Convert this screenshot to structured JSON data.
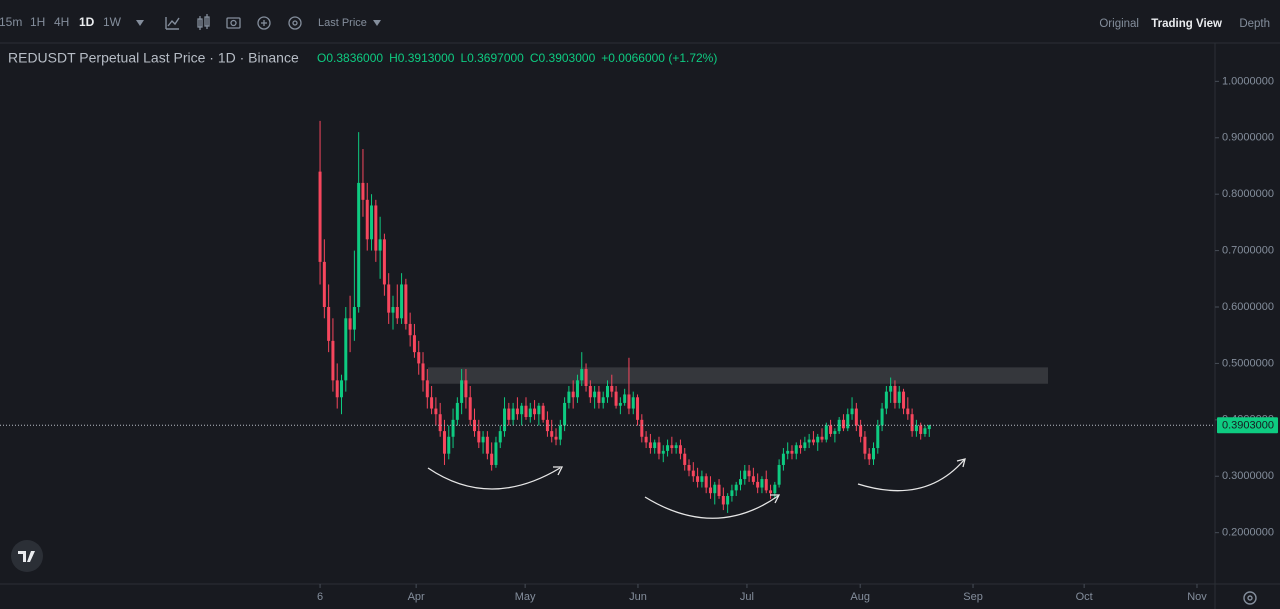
{
  "toolbar": {
    "intervals": [
      "15m",
      "1H",
      "4H",
      "1D",
      "1W"
    ],
    "price_mode": "Last Price",
    "views": [
      "Original",
      "Trading View",
      "Depth"
    ]
  },
  "chart_data": {
    "type": "candlestick",
    "title": "REDUSDT Perpetual Last Price · 1D · Binance",
    "ohlc_legend": [
      "O0.3836000",
      "H0.3913000",
      "L0.3697000",
      "C0.3903000",
      "+0.0066000 (+1.72%)"
    ],
    "up_color": "#0ecb81",
    "down_color": "#f6465d",
    "xticks": [
      {
        "value": 0,
        "label": "6"
      },
      {
        "value": 22.4,
        "label": "Apr"
      },
      {
        "value": 47.8,
        "label": "May"
      },
      {
        "value": 74.1,
        "label": "Jun"
      },
      {
        "value": 99.5,
        "label": "Jul"
      },
      {
        "value": 125.9,
        "label": "Aug"
      },
      {
        "value": 152.2,
        "label": "Sep"
      },
      {
        "value": 178.1,
        "label": "Oct"
      },
      {
        "value": 204.4,
        "label": "Nov"
      }
    ],
    "xlim": [
      -74.6,
      208.6
    ],
    "ylim": [
      0.109,
      1.068
    ],
    "yticks": [
      {
        "value": 0.2,
        "label": "0.2000000"
      },
      {
        "value": 0.3,
        "label": "0.3000000"
      },
      {
        "value": 0.4,
        "label": "0.4000000"
      },
      {
        "value": 0.5,
        "label": "0.5000000"
      },
      {
        "value": 0.6,
        "label": "0.6000000"
      },
      {
        "value": 0.7,
        "label": "0.7000000"
      },
      {
        "value": 0.8,
        "label": "0.8000000"
      },
      {
        "value": 0.9,
        "label": "0.9000000"
      },
      {
        "value": 1.0,
        "label": "1.0000000"
      }
    ],
    "zone": [
      0.464,
      0.493
    ],
    "last_price": {
      "value": 0.3903,
      "label": "0.3903000"
    },
    "ohlc": [
      [
        0.84,
        0.93,
        0.64,
        0.68
      ],
      [
        0.68,
        0.72,
        0.58,
        0.6
      ],
      [
        0.6,
        0.64,
        0.52,
        0.54
      ],
      [
        0.54,
        0.58,
        0.45,
        0.47
      ],
      [
        0.47,
        0.5,
        0.42,
        0.44
      ],
      [
        0.44,
        0.48,
        0.41,
        0.47
      ],
      [
        0.47,
        0.6,
        0.45,
        0.58
      ],
      [
        0.58,
        0.62,
        0.52,
        0.56
      ],
      [
        0.56,
        0.7,
        0.54,
        0.6
      ],
      [
        0.6,
        0.91,
        0.59,
        0.82
      ],
      [
        0.82,
        0.88,
        0.76,
        0.79
      ],
      [
        0.79,
        0.82,
        0.7,
        0.72
      ],
      [
        0.72,
        0.8,
        0.7,
        0.78
      ],
      [
        0.78,
        0.79,
        0.68,
        0.7
      ],
      [
        0.7,
        0.76,
        0.65,
        0.72
      ],
      [
        0.72,
        0.73,
        0.62,
        0.64
      ],
      [
        0.64,
        0.66,
        0.57,
        0.59
      ],
      [
        0.59,
        0.62,
        0.56,
        0.6
      ],
      [
        0.6,
        0.64,
        0.57,
        0.58
      ],
      [
        0.58,
        0.66,
        0.57,
        0.64
      ],
      [
        0.64,
        0.65,
        0.56,
        0.57
      ],
      [
        0.57,
        0.59,
        0.53,
        0.55
      ],
      [
        0.55,
        0.57,
        0.51,
        0.52
      ],
      [
        0.52,
        0.54,
        0.48,
        0.5
      ],
      [
        0.5,
        0.52,
        0.45,
        0.47
      ],
      [
        0.47,
        0.49,
        0.42,
        0.44
      ],
      [
        0.44,
        0.46,
        0.41,
        0.42
      ],
      [
        0.42,
        0.44,
        0.39,
        0.41
      ],
      [
        0.41,
        0.43,
        0.37,
        0.38
      ],
      [
        0.38,
        0.4,
        0.32,
        0.34
      ],
      [
        0.34,
        0.39,
        0.33,
        0.37
      ],
      [
        0.37,
        0.42,
        0.35,
        0.4
      ],
      [
        0.4,
        0.44,
        0.39,
        0.43
      ],
      [
        0.43,
        0.49,
        0.41,
        0.47
      ],
      [
        0.47,
        0.49,
        0.42,
        0.44
      ],
      [
        0.44,
        0.46,
        0.39,
        0.4
      ],
      [
        0.4,
        0.42,
        0.37,
        0.38
      ],
      [
        0.38,
        0.4,
        0.35,
        0.36
      ],
      [
        0.36,
        0.38,
        0.34,
        0.37
      ],
      [
        0.37,
        0.38,
        0.33,
        0.34
      ],
      [
        0.34,
        0.36,
        0.31,
        0.32
      ],
      [
        0.32,
        0.37,
        0.315,
        0.36
      ],
      [
        0.36,
        0.39,
        0.35,
        0.38
      ],
      [
        0.38,
        0.44,
        0.37,
        0.42
      ],
      [
        0.42,
        0.43,
        0.39,
        0.4
      ],
      [
        0.4,
        0.43,
        0.39,
        0.42
      ],
      [
        0.42,
        0.44,
        0.4,
        0.41
      ],
      [
        0.41,
        0.43,
        0.39,
        0.425
      ],
      [
        0.425,
        0.44,
        0.4,
        0.405
      ],
      [
        0.405,
        0.43,
        0.395,
        0.42
      ],
      [
        0.42,
        0.435,
        0.4,
        0.41
      ],
      [
        0.41,
        0.43,
        0.39,
        0.425
      ],
      [
        0.425,
        0.43,
        0.395,
        0.4
      ],
      [
        0.4,
        0.415,
        0.37,
        0.38
      ],
      [
        0.38,
        0.4,
        0.36,
        0.37
      ],
      [
        0.37,
        0.385,
        0.355,
        0.365
      ],
      [
        0.365,
        0.4,
        0.355,
        0.39
      ],
      [
        0.39,
        0.44,
        0.38,
        0.43
      ],
      [
        0.43,
        0.46,
        0.42,
        0.45
      ],
      [
        0.45,
        0.47,
        0.42,
        0.44
      ],
      [
        0.44,
        0.48,
        0.43,
        0.47
      ],
      [
        0.47,
        0.52,
        0.46,
        0.49
      ],
      [
        0.49,
        0.5,
        0.45,
        0.46
      ],
      [
        0.46,
        0.47,
        0.43,
        0.44
      ],
      [
        0.44,
        0.46,
        0.42,
        0.45
      ],
      [
        0.45,
        0.46,
        0.42,
        0.43
      ],
      [
        0.43,
        0.45,
        0.42,
        0.44
      ],
      [
        0.44,
        0.47,
        0.43,
        0.46
      ],
      [
        0.46,
        0.48,
        0.44,
        0.45
      ],
      [
        0.45,
        0.46,
        0.42,
        0.425
      ],
      [
        0.425,
        0.44,
        0.41,
        0.43
      ],
      [
        0.43,
        0.455,
        0.425,
        0.445
      ],
      [
        0.445,
        0.51,
        0.41,
        0.42
      ],
      [
        0.42,
        0.45,
        0.41,
        0.44
      ],
      [
        0.44,
        0.445,
        0.39,
        0.4
      ],
      [
        0.4,
        0.41,
        0.36,
        0.37
      ],
      [
        0.37,
        0.38,
        0.35,
        0.36
      ],
      [
        0.36,
        0.375,
        0.34,
        0.35
      ],
      [
        0.35,
        0.365,
        0.34,
        0.36
      ],
      [
        0.36,
        0.37,
        0.33,
        0.34
      ],
      [
        0.34,
        0.355,
        0.325,
        0.345
      ],
      [
        0.345,
        0.365,
        0.335,
        0.355
      ],
      [
        0.355,
        0.37,
        0.34,
        0.35
      ],
      [
        0.35,
        0.36,
        0.34,
        0.355
      ],
      [
        0.355,
        0.365,
        0.33,
        0.34
      ],
      [
        0.34,
        0.35,
        0.31,
        0.32
      ],
      [
        0.32,
        0.33,
        0.3,
        0.31
      ],
      [
        0.31,
        0.325,
        0.29,
        0.3
      ],
      [
        0.3,
        0.315,
        0.28,
        0.29
      ],
      [
        0.29,
        0.31,
        0.28,
        0.3
      ],
      [
        0.3,
        0.305,
        0.27,
        0.28
      ],
      [
        0.28,
        0.3,
        0.26,
        0.27
      ],
      [
        0.27,
        0.29,
        0.25,
        0.285
      ],
      [
        0.285,
        0.295,
        0.26,
        0.265
      ],
      [
        0.265,
        0.28,
        0.24,
        0.25
      ],
      [
        0.25,
        0.27,
        0.235,
        0.265
      ],
      [
        0.265,
        0.285,
        0.255,
        0.275
      ],
      [
        0.275,
        0.29,
        0.265,
        0.285
      ],
      [
        0.285,
        0.31,
        0.275,
        0.295
      ],
      [
        0.295,
        0.32,
        0.285,
        0.31
      ],
      [
        0.31,
        0.32,
        0.29,
        0.3
      ],
      [
        0.3,
        0.315,
        0.285,
        0.29
      ],
      [
        0.29,
        0.305,
        0.27,
        0.28
      ],
      [
        0.28,
        0.3,
        0.27,
        0.295
      ],
      [
        0.295,
        0.31,
        0.27,
        0.275
      ],
      [
        0.275,
        0.285,
        0.26,
        0.27
      ],
      [
        0.27,
        0.29,
        0.26,
        0.285
      ],
      [
        0.285,
        0.33,
        0.28,
        0.32
      ],
      [
        0.32,
        0.35,
        0.31,
        0.34
      ],
      [
        0.34,
        0.36,
        0.33,
        0.345
      ],
      [
        0.345,
        0.355,
        0.33,
        0.34
      ],
      [
        0.34,
        0.36,
        0.33,
        0.355
      ],
      [
        0.355,
        0.365,
        0.34,
        0.35
      ],
      [
        0.35,
        0.37,
        0.345,
        0.36
      ],
      [
        0.36,
        0.375,
        0.35,
        0.365
      ],
      [
        0.365,
        0.38,
        0.355,
        0.36
      ],
      [
        0.36,
        0.375,
        0.345,
        0.37
      ],
      [
        0.37,
        0.385,
        0.36,
        0.365
      ],
      [
        0.365,
        0.395,
        0.36,
        0.39
      ],
      [
        0.39,
        0.4,
        0.37,
        0.375
      ],
      [
        0.375,
        0.385,
        0.36,
        0.38
      ],
      [
        0.38,
        0.405,
        0.375,
        0.4
      ],
      [
        0.4,
        0.41,
        0.38,
        0.385
      ],
      [
        0.385,
        0.42,
        0.38,
        0.41
      ],
      [
        0.41,
        0.44,
        0.4,
        0.42
      ],
      [
        0.42,
        0.43,
        0.38,
        0.39
      ],
      [
        0.39,
        0.4,
        0.36,
        0.37
      ],
      [
        0.37,
        0.38,
        0.33,
        0.34
      ],
      [
        0.34,
        0.35,
        0.32,
        0.33
      ],
      [
        0.33,
        0.36,
        0.32,
        0.35
      ],
      [
        0.35,
        0.4,
        0.34,
        0.39
      ],
      [
        0.39,
        0.43,
        0.38,
        0.42
      ],
      [
        0.42,
        0.46,
        0.41,
        0.45
      ],
      [
        0.45,
        0.475,
        0.43,
        0.46
      ],
      [
        0.46,
        0.47,
        0.42,
        0.43
      ],
      [
        0.43,
        0.46,
        0.42,
        0.45
      ],
      [
        0.45,
        0.455,
        0.41,
        0.42
      ],
      [
        0.42,
        0.44,
        0.4,
        0.41
      ],
      [
        0.41,
        0.42,
        0.37,
        0.38
      ],
      [
        0.38,
        0.4,
        0.37,
        0.39
      ],
      [
        0.39,
        0.395,
        0.365,
        0.375
      ],
      [
        0.375,
        0.39,
        0.37,
        0.385
      ],
      [
        0.3836,
        0.3913,
        0.3697,
        0.3903
      ]
    ]
  }
}
